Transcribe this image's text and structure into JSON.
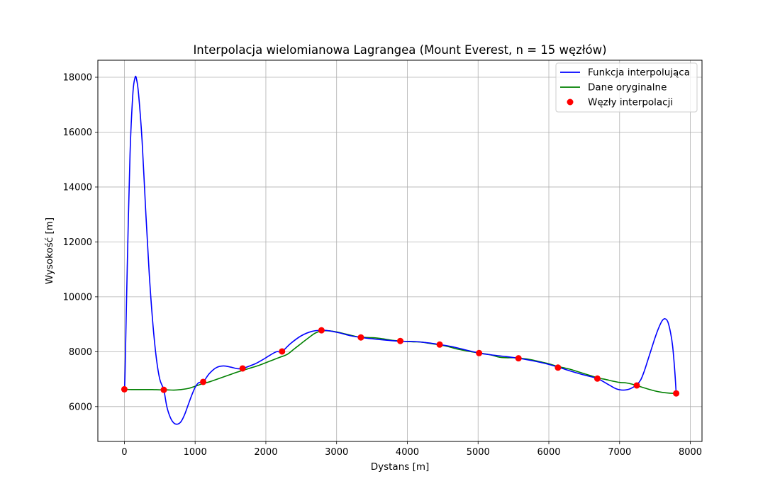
{
  "chart_data": {
    "type": "line",
    "title": "Interpolacja wielomianowa Lagrangea (Mount Everest, n = 15 węzłów)",
    "xlabel": "Dystans [m]",
    "ylabel": "Wysokość [m]",
    "xlim": [
      -375,
      8165
    ],
    "ylim": [
      4730,
      18620
    ],
    "xticks": [
      0,
      1000,
      2000,
      3000,
      4000,
      5000,
      6000,
      7000,
      8000
    ],
    "yticks": [
      6000,
      8000,
      10000,
      12000,
      14000,
      16000,
      18000
    ],
    "grid": true,
    "legend_position": "top-right",
    "legend": [
      "Funkcja interpolująca",
      "Dane oryginalne",
      "Węzły interpolacji"
    ],
    "series": [
      {
        "name": "Funkcja interpolująca",
        "kind": "line",
        "color": "#0000ff",
        "x": [
          0,
          10,
          40,
          80,
          120,
          150,
          170,
          200,
          250,
          300,
          350,
          400,
          450,
          500,
          557,
          600,
          650,
          700,
          750,
          800,
          850,
          900,
          950,
          1000,
          1050,
          1114,
          1200,
          1300,
          1400,
          1500,
          1600,
          1671,
          1750,
          1850,
          1950,
          2050,
          2150,
          2229,
          2350,
          2500,
          2650,
          2786,
          2900,
          3050,
          3200,
          3343,
          3500,
          3700,
          3900,
          4100,
          4300,
          4457,
          4600,
          4800,
          5014,
          5200,
          5400,
          5571,
          5750,
          5950,
          6129,
          6300,
          6500,
          6686,
          6850,
          6950,
          7050,
          7150,
          7243,
          7300,
          7350,
          7400,
          7450,
          7500,
          7550,
          7600,
          7640,
          7680,
          7720,
          7750,
          7780,
          7800
        ],
        "y": [
          6630,
          7300,
          11000,
          15200,
          17400,
          17980,
          17950,
          17400,
          15700,
          13200,
          10900,
          9100,
          7800,
          7000,
          6610,
          6000,
          5600,
          5400,
          5360,
          5450,
          5700,
          6050,
          6400,
          6700,
          6870,
          6900,
          7200,
          7420,
          7480,
          7440,
          7380,
          7390,
          7460,
          7560,
          7700,
          7860,
          8000,
          8010,
          8300,
          8580,
          8740,
          8780,
          8760,
          8680,
          8580,
          8520,
          8470,
          8420,
          8380,
          8370,
          8320,
          8260,
          8200,
          8080,
          7950,
          7880,
          7820,
          7760,
          7680,
          7570,
          7440,
          7300,
          7150,
          7020,
          6790,
          6650,
          6600,
          6650,
          6800,
          6980,
          7300,
          7700,
          8100,
          8500,
          8850,
          9120,
          9200,
          9100,
          8700,
          8200,
          7300,
          6480
        ]
      },
      {
        "name": "Dane oryginalne",
        "kind": "line",
        "color": "#008000",
        "x": [
          0,
          100,
          200,
          300,
          400,
          500,
          600,
          700,
          800,
          900,
          1000,
          1100,
          1200,
          1300,
          1400,
          1500,
          1600,
          1700,
          1800,
          1900,
          2000,
          2100,
          2200,
          2300,
          2400,
          2500,
          2600,
          2700,
          2800,
          2900,
          3000,
          3100,
          3200,
          3300,
          3400,
          3500,
          3600,
          3700,
          3800,
          3900,
          4000,
          4100,
          4200,
          4300,
          4400,
          4500,
          4600,
          4700,
          4800,
          4900,
          5000,
          5100,
          5200,
          5300,
          5400,
          5500,
          5600,
          5700,
          5800,
          5900,
          6000,
          6100,
          6200,
          6300,
          6400,
          6500,
          6600,
          6700,
          6800,
          6900,
          7000,
          7100,
          7200,
          7300,
          7400,
          7500,
          7600,
          7700,
          7800
        ],
        "y": [
          6630,
          6620,
          6620,
          6620,
          6620,
          6610,
          6610,
          6600,
          6620,
          6660,
          6740,
          6830,
          6900,
          6990,
          7080,
          7170,
          7260,
          7340,
          7420,
          7500,
          7600,
          7700,
          7800,
          7900,
          8100,
          8300,
          8500,
          8680,
          8760,
          8760,
          8720,
          8660,
          8600,
          8540,
          8520,
          8510,
          8490,
          8450,
          8410,
          8390,
          8370,
          8360,
          8350,
          8310,
          8270,
          8230,
          8170,
          8100,
          8050,
          8000,
          7960,
          7920,
          7870,
          7800,
          7780,
          7780,
          7760,
          7730,
          7680,
          7620,
          7560,
          7480,
          7420,
          7360,
          7280,
          7200,
          7120,
          7040,
          6990,
          6930,
          6880,
          6860,
          6800,
          6720,
          6640,
          6570,
          6520,
          6490,
          6480
        ]
      },
      {
        "name": "Węzły interpolacji",
        "kind": "scatter",
        "color": "#ff0000",
        "x": [
          0,
          557,
          1114,
          1671,
          2229,
          2786,
          3343,
          3900,
          4457,
          5014,
          5571,
          6129,
          6686,
          7243,
          7800
        ],
        "y": [
          6630,
          6610,
          6900,
          7390,
          8010,
          8780,
          8520,
          8390,
          8260,
          7950,
          7760,
          7420,
          7020,
          6770,
          6480
        ]
      }
    ]
  }
}
